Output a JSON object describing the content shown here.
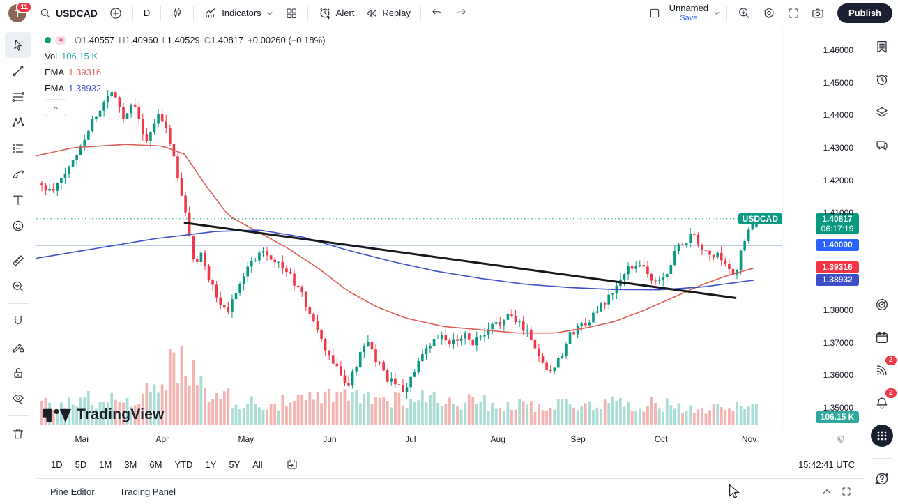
{
  "header": {
    "left": {
      "avatar": "T",
      "notifications": "11",
      "symbol": "USDCAD",
      "interval": "D",
      "indicators": "Indicators",
      "alert": "Alert",
      "replay": "Replay"
    },
    "right": {
      "layout_name": "Unnamed",
      "save": "Save",
      "publish": "Publish"
    }
  },
  "legend": {
    "o_label": "O",
    "o": "1.40557",
    "h_label": "H",
    "h": "1.40960",
    "l_label": "L",
    "l": "1.40529",
    "c_label": "C",
    "c": "1.40817",
    "change": "+0.00260 (+0.18%)",
    "vol_label": "Vol",
    "vol": "106.15 K",
    "ema1_label": "EMA",
    "ema1": "1.39316",
    "ema2_label": "EMA",
    "ema2": "1.38932"
  },
  "price_axis": {
    "symbol_badge": "USDCAD",
    "last": "1.40817",
    "countdown": "06:17:19",
    "hline": "1.40000",
    "ema_red": "1.39316",
    "ema_blue": "1.38932",
    "volume": "106.15 K"
  },
  "footer": {
    "ranges": [
      "1D",
      "5D",
      "1M",
      "3M",
      "6M",
      "YTD",
      "1Y",
      "5Y",
      "All"
    ],
    "clock": "15:42:41 UTC"
  },
  "bottom_bar": {
    "pine": "Pine Editor",
    "trading": "Trading Panel"
  },
  "watermark": {
    "text": "TradingView"
  },
  "colors": {
    "up": "#089981",
    "down": "#f23645",
    "vol_up": "#a9ddd5",
    "vol_down": "#f5b3b1",
    "ema_red": "#dd5e56",
    "ema_blue": "#4152c9",
    "hline": "#4a7db5",
    "last_line": "#089981",
    "badge_last": "#089981",
    "badge_hline": "#2962ff",
    "badge_ema_red": "#f23645",
    "badge_ema_blue": "#3d4ec9",
    "badge_volume": "#2fa99e",
    "trendline": "#17181b"
  },
  "chart_data": {
    "type": "candlestick",
    "symbol": "USDCAD",
    "timeframe": "1D",
    "title": "USDCAD daily candles with volume, two EMAs, 1.40 horizontal line and descending trendline",
    "y_axis": {
      "min": 1.35,
      "max": 1.46,
      "ticks": [
        {
          "label": "1.46000",
          "price": 1.46
        },
        {
          "label": "1.45000",
          "price": 1.45
        },
        {
          "label": "1.44000",
          "price": 1.44
        },
        {
          "label": "1.43000",
          "price": 1.43
        },
        {
          "label": "1.42000",
          "price": 1.42
        },
        {
          "label": "1.41000",
          "price": 1.41
        },
        {
          "label": "1.38000",
          "price": 1.38
        },
        {
          "label": "1.37000",
          "price": 1.37
        },
        {
          "label": "1.36000",
          "price": 1.36
        },
        {
          "label": "1.35000",
          "price": 1.35
        }
      ]
    },
    "x_axis": {
      "months": [
        {
          "label": "Mar",
          "f": 0.062
        },
        {
          "label": "Apr",
          "f": 0.17
        },
        {
          "label": "May",
          "f": 0.283
        },
        {
          "label": "Jun",
          "f": 0.396
        },
        {
          "label": "Jul",
          "f": 0.505
        },
        {
          "label": "Aug",
          "f": 0.623
        },
        {
          "label": "Sep",
          "f": 0.731
        },
        {
          "label": "Oct",
          "f": 0.843
        },
        {
          "label": "Nov",
          "f": 0.962
        }
      ]
    },
    "last_candle": {
      "open": 1.40557,
      "high": 1.4096,
      "low": 1.40529,
      "close": 1.40817,
      "change": 0.0026,
      "change_pct": 0.18
    },
    "current_price": 1.40817,
    "horizontal_line": 1.4,
    "trendline": {
      "points": [
        [
          0.2004,
          1.4069
        ],
        [
          0.9435,
          1.3838
        ]
      ]
    },
    "ema": [
      {
        "label": "EMA",
        "value": 1.39316,
        "path": [
          [
            0.0,
            1.4275
          ],
          [
            0.05,
            1.43
          ],
          [
            0.12,
            1.431
          ],
          [
            0.17,
            1.4305
          ],
          [
            0.2,
            1.428
          ],
          [
            0.23,
            1.418
          ],
          [
            0.26,
            1.409
          ],
          [
            0.3,
            1.404
          ],
          [
            0.34,
            1.399
          ],
          [
            0.38,
            1.393
          ],
          [
            0.42,
            1.386
          ],
          [
            0.46,
            1.381
          ],
          [
            0.5,
            1.3775
          ],
          [
            0.55,
            1.375
          ],
          [
            0.6,
            1.374
          ],
          [
            0.65,
            1.373
          ],
          [
            0.7,
            1.373
          ],
          [
            0.74,
            1.3745
          ],
          [
            0.78,
            1.3765
          ],
          [
            0.82,
            1.38
          ],
          [
            0.86,
            1.384
          ],
          [
            0.9,
            1.388
          ],
          [
            0.93,
            1.3905
          ],
          [
            0.972,
            1.3932
          ]
        ]
      },
      {
        "label": "EMA",
        "value": 1.38932,
        "path": [
          [
            0.0,
            1.396
          ],
          [
            0.08,
            1.399
          ],
          [
            0.16,
            1.402
          ],
          [
            0.24,
            1.4042
          ],
          [
            0.3,
            1.4047
          ],
          [
            0.36,
            1.4025
          ],
          [
            0.42,
            1.3985
          ],
          [
            0.48,
            1.395
          ],
          [
            0.54,
            1.392
          ],
          [
            0.6,
            1.3898
          ],
          [
            0.66,
            1.388
          ],
          [
            0.72,
            1.387
          ],
          [
            0.78,
            1.3864
          ],
          [
            0.84,
            1.3863
          ],
          [
            0.9,
            1.3872
          ],
          [
            0.969,
            1.3893
          ]
        ]
      }
    ],
    "close_path": [
      [
        0.0,
        1.419
      ],
      [
        0.022,
        1.416
      ],
      [
        0.05,
        1.426
      ],
      [
        0.075,
        1.438
      ],
      [
        0.095,
        1.445
      ],
      [
        0.105,
        1.448
      ],
      [
        0.118,
        1.439
      ],
      [
        0.132,
        1.445
      ],
      [
        0.148,
        1.431
      ],
      [
        0.165,
        1.44
      ],
      [
        0.18,
        1.433
      ],
      [
        0.193,
        1.418
      ],
      [
        0.205,
        1.406
      ],
      [
        0.213,
        1.393
      ],
      [
        0.222,
        1.399
      ],
      [
        0.232,
        1.39
      ],
      [
        0.245,
        1.383
      ],
      [
        0.258,
        1.379
      ],
      [
        0.272,
        1.388
      ],
      [
        0.288,
        1.394
      ],
      [
        0.305,
        1.399
      ],
      [
        0.32,
        1.396
      ],
      [
        0.338,
        1.392
      ],
      [
        0.355,
        1.386
      ],
      [
        0.37,
        1.379
      ],
      [
        0.385,
        1.37
      ],
      [
        0.398,
        1.365
      ],
      [
        0.41,
        1.36
      ],
      [
        0.422,
        1.357
      ],
      [
        0.433,
        1.364
      ],
      [
        0.445,
        1.37
      ],
      [
        0.458,
        1.365
      ],
      [
        0.47,
        1.36
      ],
      [
        0.483,
        1.357
      ],
      [
        0.495,
        1.3555
      ],
      [
        0.508,
        1.36
      ],
      [
        0.522,
        1.366
      ],
      [
        0.535,
        1.37
      ],
      [
        0.548,
        1.372
      ],
      [
        0.56,
        1.369
      ],
      [
        0.575,
        1.373
      ],
      [
        0.59,
        1.37
      ],
      [
        0.605,
        1.372
      ],
      [
        0.62,
        1.376
      ],
      [
        0.637,
        1.378
      ],
      [
        0.652,
        1.376
      ],
      [
        0.665,
        1.373
      ],
      [
        0.68,
        1.365
      ],
      [
        0.693,
        1.361
      ],
      [
        0.707,
        1.366
      ],
      [
        0.722,
        1.373
      ],
      [
        0.738,
        1.376
      ],
      [
        0.755,
        1.379
      ],
      [
        0.77,
        1.383
      ],
      [
        0.785,
        1.388
      ],
      [
        0.8,
        1.393
      ],
      [
        0.815,
        1.395
      ],
      [
        0.83,
        1.389
      ],
      [
        0.845,
        1.389
      ],
      [
        0.858,
        1.396
      ],
      [
        0.872,
        1.401
      ],
      [
        0.885,
        1.403
      ],
      [
        0.898,
        1.399
      ],
      [
        0.91,
        1.396
      ],
      [
        0.922,
        1.397
      ],
      [
        0.932,
        1.392
      ],
      [
        0.942,
        1.39
      ],
      [
        0.952,
        1.399
      ],
      [
        0.96,
        1.404
      ],
      [
        0.972,
        1.4082
      ]
    ],
    "volume": {
      "last_label": "106.15 K",
      "envelope": [
        [
          0.0,
          38
        ],
        [
          0.05,
          48
        ],
        [
          0.1,
          52
        ],
        [
          0.14,
          58
        ],
        [
          0.17,
          70
        ],
        [
          0.185,
          135
        ],
        [
          0.2,
          115
        ],
        [
          0.215,
          95
        ],
        [
          0.235,
          70
        ],
        [
          0.27,
          48
        ],
        [
          0.32,
          42
        ],
        [
          0.38,
          52
        ],
        [
          0.43,
          58
        ],
        [
          0.47,
          52
        ],
        [
          0.52,
          55
        ],
        [
          0.57,
          48
        ],
        [
          0.62,
          42
        ],
        [
          0.67,
          40
        ],
        [
          0.72,
          42
        ],
        [
          0.77,
          45
        ],
        [
          0.82,
          42
        ],
        [
          0.87,
          38
        ],
        [
          0.91,
          34
        ],
        [
          0.94,
          32
        ],
        [
          0.951,
          62
        ],
        [
          0.962,
          30
        ],
        [
          0.972,
          34
        ]
      ]
    },
    "n_candles": 185,
    "seed": 11,
    "noise": 0.0026
  }
}
